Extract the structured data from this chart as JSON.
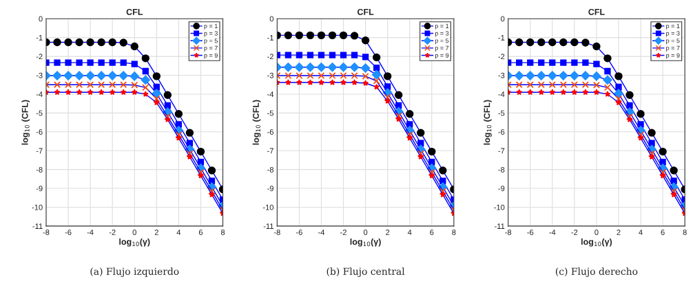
{
  "chart_data": [
    {
      "type": "line",
      "title": "CFL",
      "xlabel": "log$_{10}$(γ)",
      "ylabel": "log$_{10}$ (CFL)",
      "annotations": [
        "(a) Flujo izquierdo"
      ],
      "x": [
        -8,
        -7,
        -6,
        -5,
        -4,
        -3,
        -2,
        -1,
        0,
        1,
        2,
        3,
        4,
        5,
        6,
        7,
        8
      ],
      "xlim": [
        -8,
        8
      ],
      "xticks": [
        -8,
        -6,
        -4,
        -2,
        0,
        2,
        4,
        6,
        8
      ],
      "ylim": [
        -11,
        0
      ],
      "yticks": [
        -11,
        -10,
        -9,
        -8,
        -7,
        -6,
        -5,
        -4,
        -3,
        -2,
        -1,
        0
      ],
      "grid": true,
      "legend": "top right",
      "series": [
        {
          "name": "p = 1",
          "color": "#000000",
          "marker": "circle",
          "values": [
            -1.25,
            -1.25,
            -1.25,
            -1.25,
            -1.25,
            -1.25,
            -1.25,
            -1.27,
            -1.47,
            -2.1,
            -3.05,
            -4.05,
            -5.05,
            -6.05,
            -7.05,
            -8.05,
            -9.05
          ]
        },
        {
          "name": "p = 3",
          "color": "#0000ff",
          "marker": "square",
          "values": [
            -2.33,
            -2.33,
            -2.33,
            -2.33,
            -2.33,
            -2.33,
            -2.33,
            -2.33,
            -2.4,
            -2.78,
            -3.62,
            -4.6,
            -5.6,
            -6.6,
            -7.6,
            -8.6,
            -9.6
          ]
        },
        {
          "name": "p = 5",
          "color": "#1e90ff",
          "marker": "diamond",
          "values": [
            -3.02,
            -3.02,
            -3.02,
            -3.02,
            -3.02,
            -3.02,
            -3.02,
            -3.02,
            -3.05,
            -3.25,
            -3.97,
            -4.95,
            -5.93,
            -6.93,
            -7.93,
            -8.93,
            -9.93
          ]
        },
        {
          "name": "p = 7",
          "color": "#ff4500",
          "marker": "cross",
          "values": [
            -3.5,
            -3.5,
            -3.5,
            -3.5,
            -3.5,
            -3.5,
            -3.5,
            -3.5,
            -3.52,
            -3.65,
            -4.25,
            -5.2,
            -6.15,
            -7.15,
            -8.15,
            -9.15,
            -10.15
          ]
        },
        {
          "name": "p = 9",
          "color": "#ff0000",
          "marker": "star",
          "values": [
            -3.9,
            -3.9,
            -3.9,
            -3.9,
            -3.9,
            -3.9,
            -3.9,
            -3.9,
            -3.9,
            -4.0,
            -4.45,
            -5.35,
            -6.33,
            -7.33,
            -8.33,
            -9.33,
            -10.33
          ]
        }
      ]
    },
    {
      "type": "line",
      "title": "CFL",
      "xlabel": "log$_{10}$(γ)",
      "ylabel": "log$_{10}$ (CFL)",
      "annotations": [
        "(b) Flujo central"
      ],
      "x": [
        -8,
        -7,
        -6,
        -5,
        -4,
        -3,
        -2,
        -1,
        0,
        1,
        2,
        3,
        4,
        5,
        6,
        7,
        8
      ],
      "xlim": [
        -8,
        8
      ],
      "xticks": [
        -8,
        -6,
        -4,
        -2,
        0,
        2,
        4,
        6,
        8
      ],
      "ylim": [
        -11,
        0
      ],
      "yticks": [
        -11,
        -10,
        -9,
        -8,
        -7,
        -6,
        -5,
        -4,
        -3,
        -2,
        -1,
        0
      ],
      "grid": true,
      "legend": "top right",
      "series": [
        {
          "name": "p = 1",
          "color": "#000000",
          "marker": "circle",
          "values": [
            -0.88,
            -0.88,
            -0.88,
            -0.88,
            -0.88,
            -0.88,
            -0.88,
            -0.9,
            -1.15,
            -2.05,
            -3.05,
            -4.05,
            -5.05,
            -6.05,
            -7.05,
            -8.05,
            -9.05
          ]
        },
        {
          "name": "p = 3",
          "color": "#0000ff",
          "marker": "square",
          "values": [
            -1.93,
            -1.93,
            -1.93,
            -1.93,
            -1.93,
            -1.93,
            -1.93,
            -1.93,
            -2.03,
            -2.6,
            -3.6,
            -4.6,
            -5.6,
            -6.6,
            -7.6,
            -8.6,
            -9.6
          ]
        },
        {
          "name": "p = 5",
          "color": "#1e90ff",
          "marker": "diamond",
          "values": [
            -2.57,
            -2.57,
            -2.57,
            -2.57,
            -2.57,
            -2.57,
            -2.57,
            -2.57,
            -2.62,
            -2.97,
            -3.93,
            -4.93,
            -5.93,
            -6.93,
            -7.93,
            -8.93,
            -9.93
          ]
        },
        {
          "name": "p = 7",
          "color": "#ff4500",
          "marker": "cross",
          "values": [
            -3.02,
            -3.02,
            -3.02,
            -3.02,
            -3.02,
            -3.02,
            -3.02,
            -3.02,
            -3.05,
            -3.3,
            -4.17,
            -5.15,
            -6.15,
            -7.15,
            -8.15,
            -9.15,
            -10.15
          ]
        },
        {
          "name": "p = 9",
          "color": "#ff0000",
          "marker": "star",
          "values": [
            -3.38,
            -3.38,
            -3.38,
            -3.38,
            -3.38,
            -3.38,
            -3.38,
            -3.38,
            -3.42,
            -3.62,
            -4.37,
            -5.33,
            -6.33,
            -7.33,
            -8.33,
            -9.33,
            -10.33
          ]
        }
      ]
    },
    {
      "type": "line",
      "title": "CFL",
      "xlabel": "log$_{10}$(γ)",
      "ylabel": "log$_{10}$ (CFL)",
      "annotations": [
        "(c) Flujo derecho"
      ],
      "x": [
        -8,
        -7,
        -6,
        -5,
        -4,
        -3,
        -2,
        -1,
        0,
        1,
        2,
        3,
        4,
        5,
        6,
        7,
        8
      ],
      "xlim": [
        -8,
        8
      ],
      "xticks": [
        -8,
        -6,
        -4,
        -2,
        0,
        2,
        4,
        6,
        8
      ],
      "ylim": [
        -11,
        0
      ],
      "yticks": [
        -11,
        -10,
        -9,
        -8,
        -7,
        -6,
        -5,
        -4,
        -3,
        -2,
        -1,
        0
      ],
      "grid": true,
      "legend": "top right",
      "series": [
        {
          "name": "p = 1",
          "color": "#000000",
          "marker": "circle",
          "values": [
            -1.25,
            -1.25,
            -1.25,
            -1.25,
            -1.25,
            -1.25,
            -1.25,
            -1.27,
            -1.47,
            -2.1,
            -3.05,
            -4.05,
            -5.05,
            -6.05,
            -7.05,
            -8.05,
            -9.05
          ]
        },
        {
          "name": "p = 3",
          "color": "#0000ff",
          "marker": "square",
          "values": [
            -2.33,
            -2.33,
            -2.33,
            -2.33,
            -2.33,
            -2.33,
            -2.33,
            -2.33,
            -2.4,
            -2.78,
            -3.62,
            -4.6,
            -5.6,
            -6.6,
            -7.6,
            -8.6,
            -9.6
          ]
        },
        {
          "name": "p = 5",
          "color": "#1e90ff",
          "marker": "diamond",
          "values": [
            -3.02,
            -3.02,
            -3.02,
            -3.02,
            -3.02,
            -3.02,
            -3.02,
            -3.02,
            -3.05,
            -3.25,
            -3.97,
            -4.95,
            -5.93,
            -6.93,
            -7.93,
            -8.93,
            -9.93
          ]
        },
        {
          "name": "p = 7",
          "color": "#ff4500",
          "marker": "cross",
          "values": [
            -3.5,
            -3.5,
            -3.5,
            -3.5,
            -3.5,
            -3.5,
            -3.5,
            -3.5,
            -3.52,
            -3.65,
            -4.25,
            -5.2,
            -6.15,
            -7.15,
            -8.15,
            -9.15,
            -10.15
          ]
        },
        {
          "name": "p = 9",
          "color": "#ff0000",
          "marker": "star",
          "values": [
            -3.9,
            -3.9,
            -3.9,
            -3.9,
            -3.9,
            -3.9,
            -3.9,
            -3.9,
            -3.9,
            -4.0,
            -4.45,
            -5.35,
            -6.33,
            -7.33,
            -8.33,
            -9.33,
            -10.33
          ]
        }
      ]
    }
  ]
}
